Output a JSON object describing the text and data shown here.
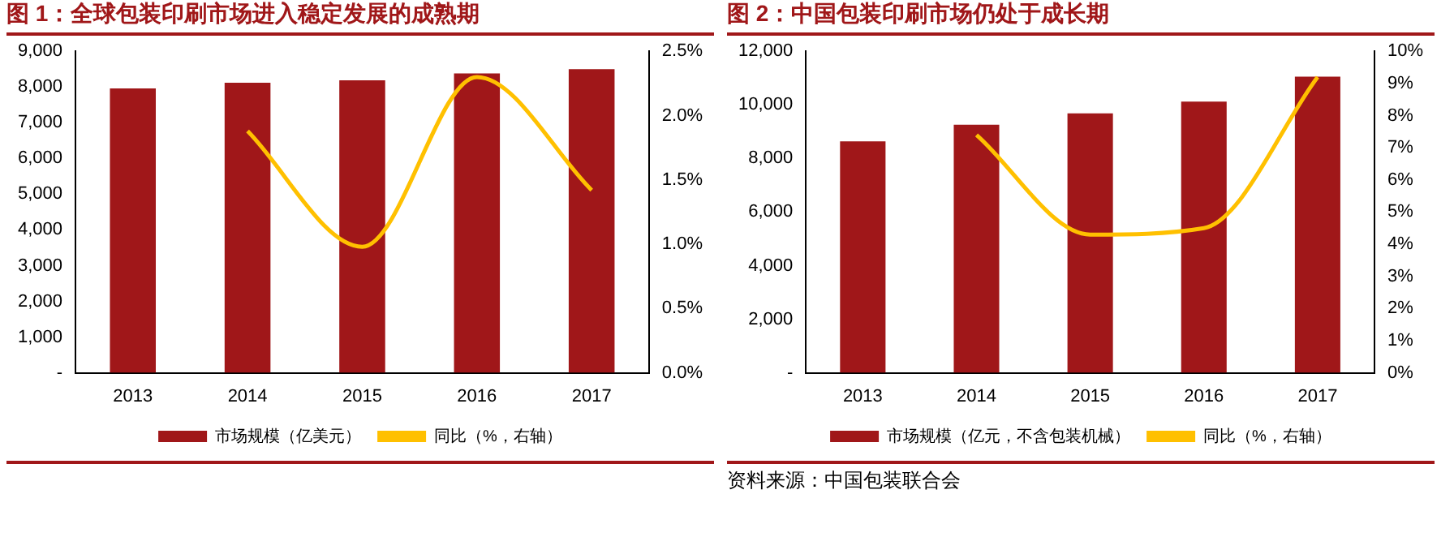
{
  "chart_data": [
    {
      "type": "bar",
      "title": "图 1：全球包装印刷市场进入稳定发展的成熟期",
      "categories": [
        "2013",
        "2014",
        "2015",
        "2016",
        "2017"
      ],
      "series": [
        {
          "name": "市场规模（亿美元）",
          "color": "#a01719",
          "values": [
            7960,
            8120,
            8190,
            8380,
            8500
          ]
        },
        {
          "name": "同比（%，右轴）",
          "type": "line",
          "axis": "y2",
          "color": "#ffc000",
          "values": [
            null,
            1.88,
            0.98,
            2.3,
            1.42
          ]
        }
      ],
      "ylim": [
        0,
        9000
      ],
      "yticks": [
        {
          "value": 0,
          "label": "-"
        },
        {
          "value": 1000,
          "label": "1,000"
        },
        {
          "value": 2000,
          "label": "2,000"
        },
        {
          "value": 3000,
          "label": "3,000"
        },
        {
          "value": 4000,
          "label": "4,000"
        },
        {
          "value": 5000,
          "label": "5,000"
        },
        {
          "value": 6000,
          "label": "6,000"
        },
        {
          "value": 7000,
          "label": "7,000"
        },
        {
          "value": 8000,
          "label": "8,000"
        },
        {
          "value": 9000,
          "label": "9,000"
        }
      ],
      "y2lim": [
        0,
        2.5
      ],
      "y2ticks": [
        {
          "value": 0,
          "label": "0.0%"
        },
        {
          "value": 0.5,
          "label": "0.5%"
        },
        {
          "value": 1,
          "label": "1.0%"
        },
        {
          "value": 1.5,
          "label": "1.5%"
        },
        {
          "value": 2,
          "label": "2.0%"
        },
        {
          "value": 2.5,
          "label": "2.5%"
        }
      ],
      "legend": "bottom",
      "grid": false,
      "marker": "none"
    },
    {
      "type": "bar",
      "title": "图 2：中国包装印刷市场仍处于成长期",
      "categories": [
        "2013",
        "2014",
        "2015",
        "2016",
        "2017"
      ],
      "series": [
        {
          "name": "市场规模（亿元，不含包装机械）",
          "color": "#a01719",
          "values": [
            8640,
            9260,
            9680,
            10120,
            11050
          ]
        },
        {
          "name": "同比（%，右轴）",
          "type": "line",
          "axis": "y2",
          "color": "#ffc000",
          "values": [
            null,
            7.4,
            4.3,
            4.5,
            9.2
          ]
        }
      ],
      "ylim": [
        0,
        12000
      ],
      "yticks": [
        {
          "value": 0,
          "label": "-"
        },
        {
          "value": 2000,
          "label": "2,000"
        },
        {
          "value": 4000,
          "label": "4,000"
        },
        {
          "value": 6000,
          "label": "6,000"
        },
        {
          "value": 8000,
          "label": "8,000"
        },
        {
          "value": 10000,
          "label": "10,000"
        },
        {
          "value": 12000,
          "label": "12,000"
        }
      ],
      "y2lim": [
        0,
        10
      ],
      "y2ticks": [
        {
          "value": 0,
          "label": "0%"
        },
        {
          "value": 1,
          "label": "1%"
        },
        {
          "value": 2,
          "label": "2%"
        },
        {
          "value": 3,
          "label": "3%"
        },
        {
          "value": 4,
          "label": "4%"
        },
        {
          "value": 5,
          "label": "5%"
        },
        {
          "value": 6,
          "label": "6%"
        },
        {
          "value": 7,
          "label": "7%"
        },
        {
          "value": 8,
          "label": "8%"
        },
        {
          "value": 9,
          "label": "9%"
        },
        {
          "value": 10,
          "label": "10%"
        }
      ],
      "legend": "bottom",
      "grid": false,
      "marker": "none",
      "annotations": [
        "资料来源：中国包装联合会"
      ]
    }
  ]
}
